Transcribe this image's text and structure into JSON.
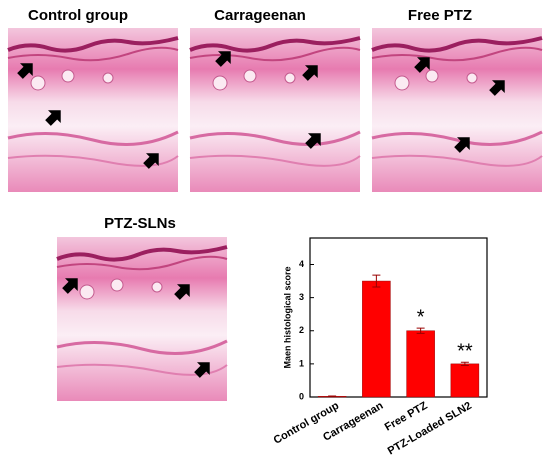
{
  "panels": [
    {
      "label": "Control group"
    },
    {
      "label": "Carrageenan"
    },
    {
      "label": "Free PTZ"
    },
    {
      "label": "PTZ-SLNs"
    }
  ],
  "chart_data": {
    "type": "bar",
    "ylabel": "Maen histological score",
    "categories": [
      "Control group",
      "Carrageenan",
      "Free PTZ",
      "PTZ-Loaded SLN2"
    ],
    "values": [
      0.02,
      3.5,
      2.0,
      1.0
    ],
    "errors": [
      0.01,
      0.18,
      0.08,
      0.05
    ],
    "color": "#ff0000",
    "annotations": [
      {
        "text": "*",
        "category": "Free PTZ"
      },
      {
        "text": "**",
        "category": "PTZ-Loaded SLN2"
      }
    ],
    "ylim": [
      0,
      4.8
    ],
    "yticks": [
      0,
      1,
      2,
      3,
      4
    ]
  }
}
